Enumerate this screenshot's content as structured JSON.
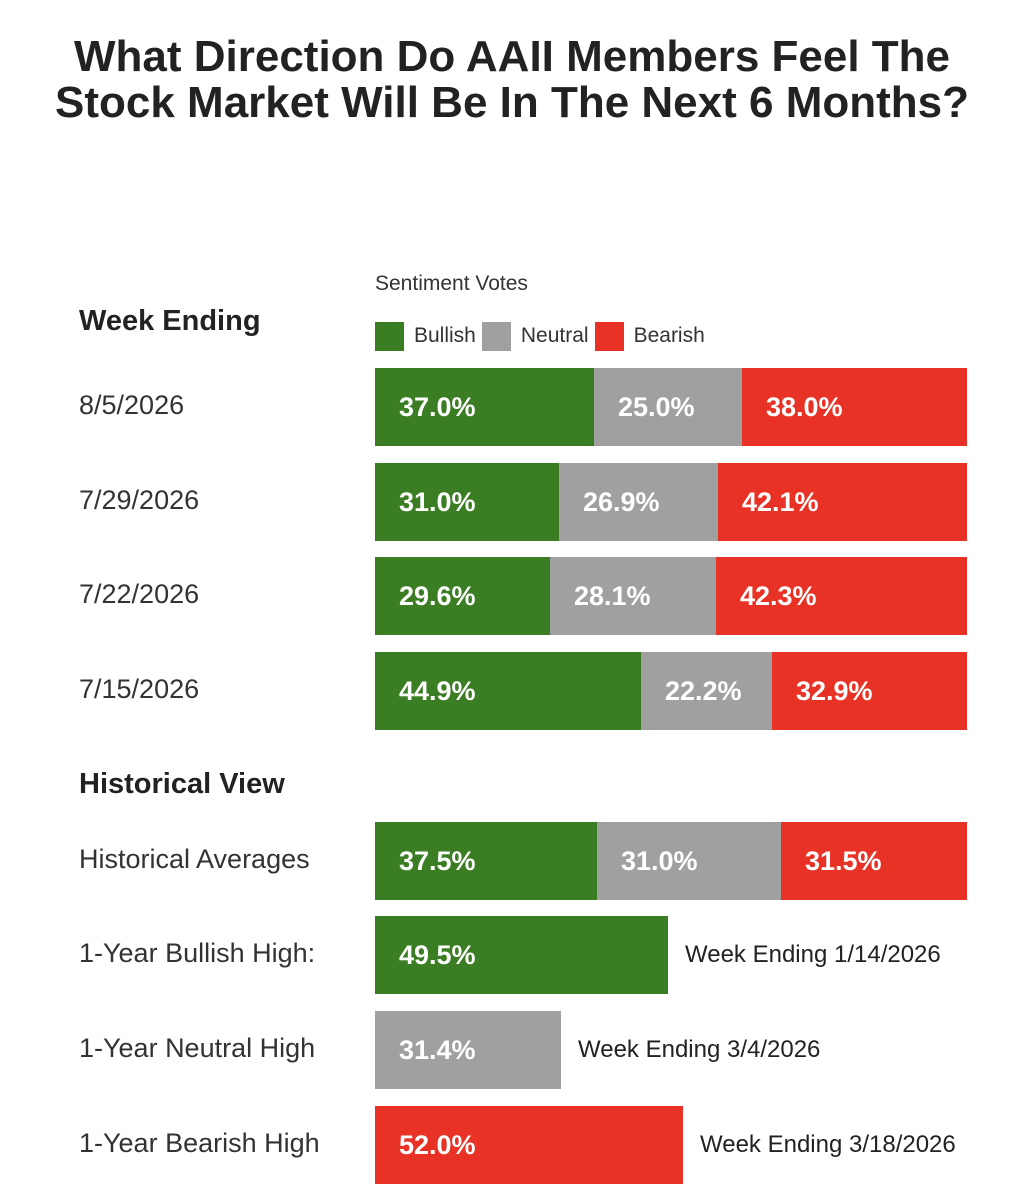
{
  "title": "What Direction Do AAII Members Feel The Stock Market Will Be In The Next 6 Months?",
  "legend": {
    "caption": "Sentiment Votes",
    "items": [
      {
        "label": "Bullish",
        "color": "#3a7d23"
      },
      {
        "label": "Neutral",
        "color": "#a0a0a0"
      },
      {
        "label": "Bearish",
        "color": "#e83225"
      }
    ]
  },
  "sections": {
    "week_ending": "Week Ending",
    "historical": "Historical View"
  },
  "chart_data": {
    "type": "bar",
    "orientation": "horizontal",
    "stacked": true,
    "units": "%",
    "xlim": [
      0,
      100
    ],
    "categories": [
      "8/5/2026",
      "7/29/2026",
      "7/22/2026",
      "7/15/2026",
      "Historical Averages"
    ],
    "series": [
      {
        "name": "Bullish",
        "color": "#3a7d23",
        "values": [
          37.0,
          31.0,
          29.6,
          44.9,
          37.5
        ],
        "labels": [
          "37.0%",
          "31.0%",
          "29.6%",
          "44.9%",
          "37.5%"
        ]
      },
      {
        "name": "Neutral",
        "color": "#a0a0a0",
        "values": [
          25.0,
          26.9,
          28.1,
          22.2,
          31.0
        ],
        "labels": [
          "25.0%",
          "26.9%",
          "28.1%",
          "22.2%",
          "31.0%"
        ]
      },
      {
        "name": "Bearish",
        "color": "#e83225",
        "values": [
          38.0,
          42.1,
          42.3,
          32.9,
          31.5
        ],
        "labels": [
          "38.0%",
          "42.1%",
          "42.3%",
          "32.9%",
          "31.5%"
        ]
      }
    ],
    "highs": [
      {
        "label": "1-Year Bullish High:",
        "value": 49.5,
        "value_label": "49.5%",
        "color": "#3a7d23",
        "note": "Week Ending 1/14/2026"
      },
      {
        "label": "1-Year Neutral High",
        "value": 31.4,
        "value_label": "31.4%",
        "color": "#a0a0a0",
        "note": "Week Ending 3/4/2026"
      },
      {
        "label": "1-Year Bearish High",
        "value": 52.0,
        "value_label": "52.0%",
        "color": "#e83225",
        "note": "Week Ending 3/18/2026"
      }
    ]
  }
}
